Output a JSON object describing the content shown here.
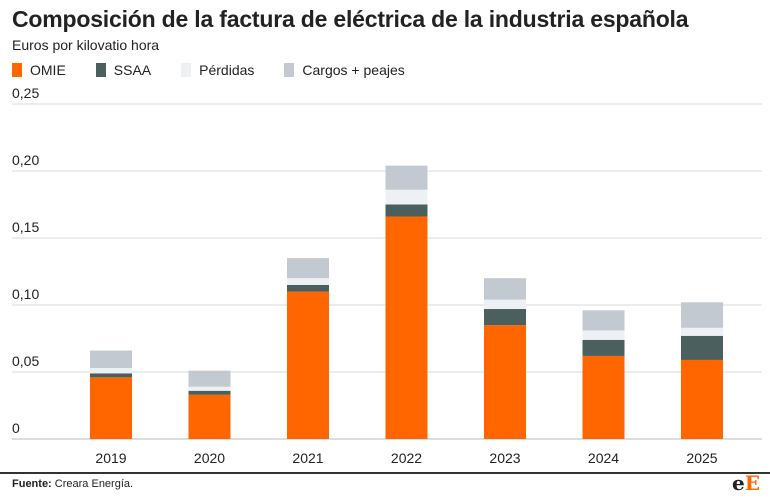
{
  "title": "Composición de la factura de eléctrica de la industria española",
  "subtitle": "Euros por kilovatio hora",
  "legend": [
    {
      "label": "OMIE",
      "color": "#ff6600"
    },
    {
      "label": "SSAA",
      "color": "#4a5f5e"
    },
    {
      "label": "Pérdidas",
      "color": "#eef1f4"
    },
    {
      "label": "Cargos + peajes",
      "color": "#c3c9d0"
    }
  ],
  "footer": {
    "label": "Fuente:",
    "text": "Creara Energía."
  },
  "logo": {
    "e": "e",
    "E": "E"
  },
  "chart_data": {
    "type": "bar",
    "stacked": true,
    "categories": [
      "2019",
      "2020",
      "2021",
      "2022",
      "2023",
      "2024",
      "2025"
    ],
    "series": [
      {
        "name": "OMIE",
        "color": "#ff6600",
        "values": [
          0.046,
          0.033,
          0.11,
          0.166,
          0.085,
          0.062,
          0.059
        ]
      },
      {
        "name": "SSAA",
        "color": "#4a5f5e",
        "values": [
          0.003,
          0.003,
          0.005,
          0.009,
          0.012,
          0.012,
          0.018
        ]
      },
      {
        "name": "Pérdidas",
        "color": "#eef1f4",
        "values": [
          0.004,
          0.003,
          0.005,
          0.011,
          0.007,
          0.007,
          0.006
        ]
      },
      {
        "name": "Cargos + peajes",
        "color": "#c3c9d0",
        "values": [
          0.013,
          0.012,
          0.015,
          0.018,
          0.016,
          0.015,
          0.019
        ]
      }
    ],
    "ylim": [
      0,
      0.25
    ],
    "yticks": [
      0,
      0.05,
      0.1,
      0.15,
      0.2,
      0.25
    ],
    "ytick_labels": [
      "0",
      "0,05",
      "0,10",
      "0,15",
      "0,20",
      "0,25"
    ],
    "grid": true,
    "legend_position": "top-left"
  }
}
